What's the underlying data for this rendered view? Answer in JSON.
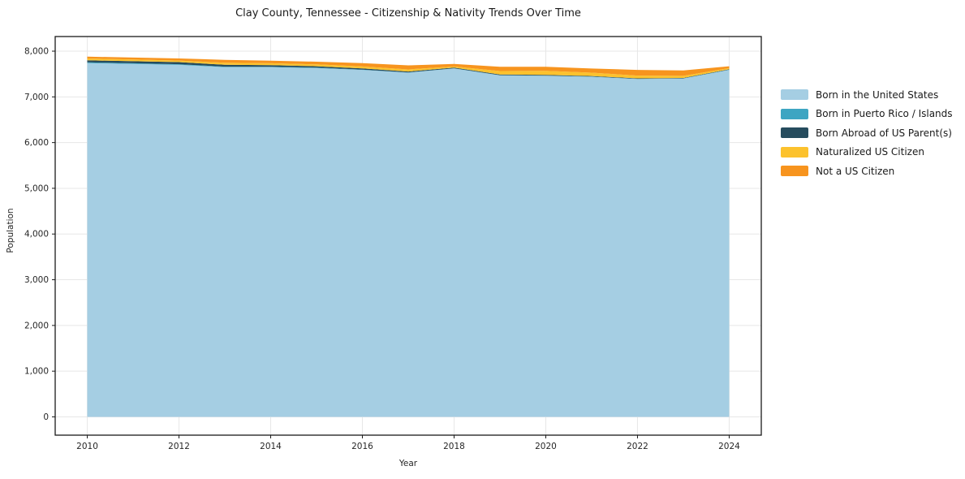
{
  "chart_data": {
    "type": "area",
    "title": "Clay County, Tennessee - Citizenship & Nativity Trends Over Time",
    "xlabel": "Year",
    "ylabel": "Population",
    "x": [
      2010,
      2011,
      2012,
      2013,
      2014,
      2015,
      2016,
      2017,
      2018,
      2019,
      2020,
      2021,
      2022,
      2023,
      2024
    ],
    "series": [
      {
        "name": "Born in the United States",
        "color": "#a5cee3",
        "values": [
          7740,
          7720,
          7700,
          7650,
          7650,
          7630,
          7590,
          7530,
          7620,
          7470,
          7460,
          7440,
          7390,
          7400,
          7590
        ]
      },
      {
        "name": "Born in Puerto Rico / Islands",
        "color": "#3da5c2",
        "values": [
          15,
          15,
          15,
          12,
          10,
          10,
          8,
          5,
          5,
          5,
          5,
          5,
          5,
          5,
          5
        ]
      },
      {
        "name": "Born Abroad of US Parent(s)",
        "color": "#264c5e",
        "values": [
          45,
          45,
          45,
          40,
          35,
          30,
          25,
          20,
          15,
          15,
          15,
          12,
          10,
          10,
          10
        ]
      },
      {
        "name": "Naturalized US Citizen",
        "color": "#fcc22d",
        "values": [
          40,
          38,
          35,
          45,
          40,
          40,
          42,
          45,
          25,
          75,
          90,
          73,
          60,
          45,
          25
        ]
      },
      {
        "name": "Not a US Citizen",
        "color": "#f7941e",
        "values": [
          40,
          42,
          45,
          63,
          55,
          60,
          75,
          90,
          55,
          95,
          90,
          90,
          125,
          120,
          40
        ]
      }
    ],
    "xticks": [
      2010,
      2012,
      2014,
      2016,
      2018,
      2020,
      2022,
      2024
    ],
    "xtick_labels": [
      "2010",
      "2012",
      "2014",
      "2016",
      "2018",
      "2020",
      "2022",
      "2024"
    ],
    "yticks": [
      0,
      1000,
      2000,
      3000,
      4000,
      5000,
      6000,
      7000,
      8000
    ],
    "ytick_labels": [
      "0",
      "1,000",
      "2,000",
      "3,000",
      "4,000",
      "5,000",
      "6,000",
      "7,000",
      "8,000"
    ],
    "xlim": [
      2009.3,
      2024.7
    ],
    "ylim": [
      -400,
      8320
    ],
    "grid": true,
    "grid_color": "#e7e7e7",
    "spine_color": "#1a1a1a",
    "tick_label_color": "#262626",
    "legend_position": "right-outside"
  }
}
